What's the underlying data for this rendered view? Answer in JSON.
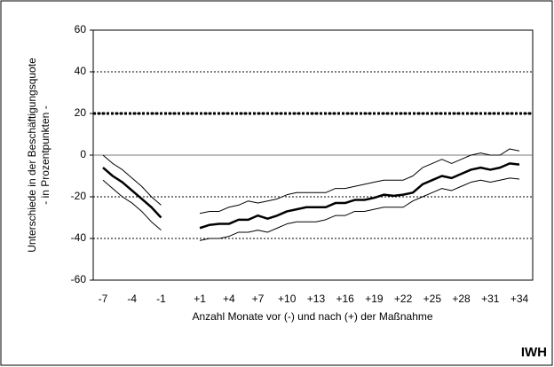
{
  "chart_data": {
    "type": "line",
    "categories": [
      "-7",
      null,
      null,
      "-4",
      null,
      null,
      "-1",
      null,
      null,
      null,
      "+1",
      null,
      null,
      "+4",
      null,
      null,
      "+7",
      null,
      null,
      "+10",
      null,
      null,
      "+13",
      null,
      null,
      "+16",
      null,
      null,
      "+19",
      null,
      null,
      "+22",
      null,
      null,
      "+25",
      null,
      null,
      "+28",
      null,
      null,
      "+31",
      null,
      null,
      "+34"
    ],
    "series": [
      {
        "color": "#000000",
        "width": 1,
        "values": [
          0,
          -4,
          -7,
          -11,
          -15,
          -20,
          -24,
          null,
          null,
          null,
          -28,
          -27,
          -27,
          -25,
          -24,
          -22,
          -23,
          -22,
          -21,
          -19,
          -18,
          -18,
          -18,
          -18,
          -16,
          -16,
          -15,
          -14,
          -13,
          -12,
          -12,
          -12,
          -10,
          -6,
          -4,
          -2,
          -4,
          -2,
          0,
          1,
          0,
          0,
          3,
          2
        ]
      },
      {
        "color": "#000000",
        "width": 2.5,
        "values": [
          -6,
          -10,
          -13,
          -17,
          -21,
          -25,
          -30,
          null,
          null,
          null,
          -35,
          -33.5,
          -33,
          -33,
          -31,
          -31,
          -29,
          -30.5,
          -29,
          -27,
          -26,
          -25,
          -25,
          -25,
          -23,
          -23,
          -21.5,
          -21.5,
          -20.5,
          -19,
          -19.5,
          -19,
          -18,
          -14,
          -12,
          -10,
          -11,
          -9,
          -7,
          -6,
          -7,
          -6,
          -4,
          -4.5
        ]
      },
      {
        "color": "#000000",
        "width": 1,
        "values": [
          -12,
          -16,
          -20,
          -23,
          -27,
          -32,
          -36,
          null,
          null,
          null,
          -41,
          -40,
          -40,
          -39,
          -37,
          -37,
          -36,
          -37,
          -35,
          -33,
          -32,
          -32,
          -32,
          -31,
          -29,
          -29,
          -27,
          -27,
          -26,
          -25,
          -25,
          -25,
          -22,
          -20,
          -18,
          -16,
          -17,
          -15,
          -13,
          -12,
          -13,
          -12,
          -11,
          -11.5
        ]
      }
    ],
    "reference_line": 20,
    "ylim": [
      -60,
      60
    ],
    "yticks": [
      -60,
      -40,
      -20,
      0,
      20,
      40,
      60
    ],
    "grid": true,
    "xlabel": "Anzahl Monate vor (-) und nach (+) der Maßnahme",
    "ylabel": [
      "Unterschiede in der Beschäftigungsquote",
      "- in Prozentpunkten -"
    ],
    "source": "IWH"
  }
}
